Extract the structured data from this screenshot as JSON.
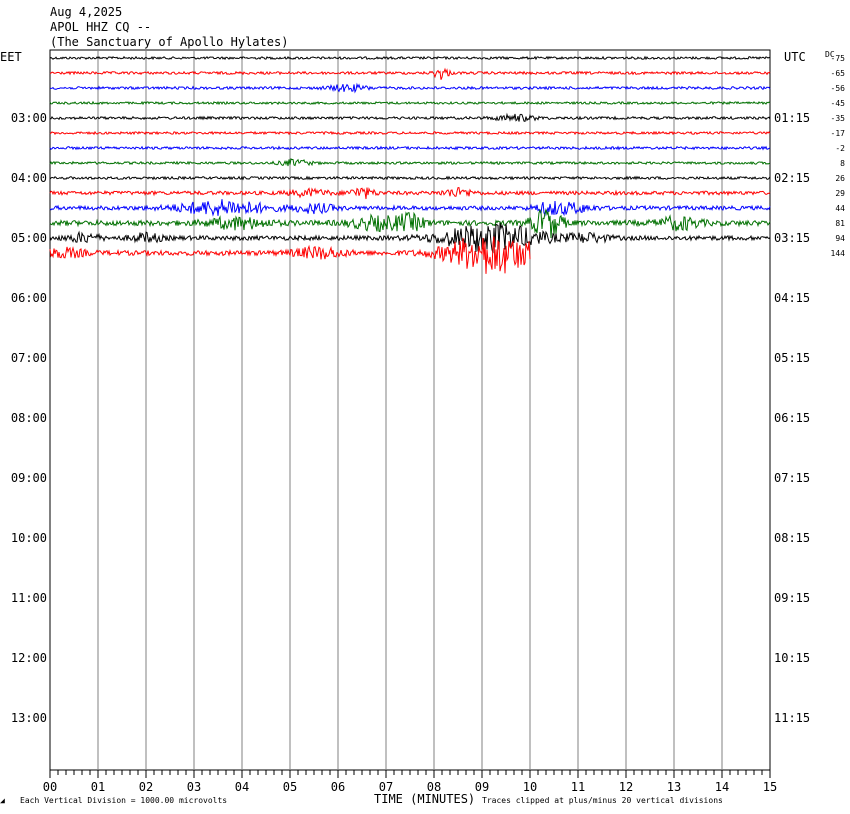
{
  "header": {
    "date": "Aug 4,2025",
    "station": "APOL HHZ CQ --",
    "site": "(The Sanctuary of Apollo Hylates)"
  },
  "labels": {
    "left_tz": "EET",
    "right_tz": "UTC",
    "dc_label": "DC",
    "x_axis_title": "TIME (MINUTES)",
    "footer_left": "Each Vertical Division = 1000.00 microvolts",
    "footer_right": "Traces clipped at plus/minus 20 vertical divisions"
  },
  "chart_data": {
    "type": "line",
    "title": "APOL HHZ CQ --",
    "subtitle": "(The Sanctuary of Apollo Hylates)",
    "xlabel": "TIME (MINUTES)",
    "ylabel": "",
    "xlim": [
      0,
      15
    ],
    "x_ticks": [
      "00",
      "01",
      "02",
      "03",
      "04",
      "05",
      "06",
      "07",
      "08",
      "09",
      "10",
      "11",
      "12",
      "13",
      "14",
      "15"
    ],
    "hour_rows": [
      {
        "left": "03:00",
        "right": "01:15"
      },
      {
        "left": "04:00",
        "right": "02:15"
      },
      {
        "left": "05:00",
        "right": "03:15"
      },
      {
        "left": "06:00",
        "right": "04:15"
      },
      {
        "left": "07:00",
        "right": "05:15"
      },
      {
        "left": "08:00",
        "right": "06:15"
      },
      {
        "left": "09:00",
        "right": "07:15"
      },
      {
        "left": "10:00",
        "right": "08:15"
      },
      {
        "left": "11:00",
        "right": "09:15"
      },
      {
        "left": "12:00",
        "right": "10:15"
      },
      {
        "left": "13:00",
        "right": "11:15"
      }
    ],
    "trace_colors": [
      "#000000",
      "#ff0000",
      "#0000ff",
      "#007000"
    ],
    "traces": [
      {
        "dc": "-75",
        "end_minute": 15,
        "noise": 1.2,
        "events": []
      },
      {
        "dc": "-65",
        "end_minute": 15,
        "noise": 1.3,
        "events": [
          {
            "t": 8.15,
            "amp": 6,
            "dur": 0.15
          }
        ]
      },
      {
        "dc": "-56",
        "end_minute": 15,
        "noise": 1.3,
        "events": [
          {
            "t": 6.2,
            "amp": 3,
            "dur": 0.4
          }
        ]
      },
      {
        "dc": "-45",
        "end_minute": 15,
        "noise": 1.1,
        "events": []
      },
      {
        "dc": "-35",
        "end_minute": 15,
        "noise": 1.3,
        "events": [
          {
            "t": 9.7,
            "amp": 3,
            "dur": 0.4
          }
        ]
      },
      {
        "dc": "-17",
        "end_minute": 15,
        "noise": 1.2,
        "events": []
      },
      {
        "dc": "-2",
        "end_minute": 15,
        "noise": 1.3,
        "events": []
      },
      {
        "dc": "8",
        "end_minute": 15,
        "noise": 1.2,
        "events": [
          {
            "t": 5.1,
            "amp": 3,
            "dur": 0.3
          }
        ]
      },
      {
        "dc": "26",
        "end_minute": 15,
        "noise": 1.3,
        "events": []
      },
      {
        "dc": "29",
        "end_minute": 15,
        "noise": 1.8,
        "events": [
          {
            "t": 5.4,
            "amp": 3,
            "dur": 0.4
          },
          {
            "t": 6.5,
            "amp": 5,
            "dur": 0.25
          },
          {
            "t": 8.5,
            "amp": 4,
            "dur": 0.3
          }
        ]
      },
      {
        "dc": "44",
        "end_minute": 15,
        "noise": 2.0,
        "events": [
          {
            "t": 3.6,
            "amp": 7,
            "dur": 0.9
          },
          {
            "t": 5.5,
            "amp": 4,
            "dur": 0.4
          },
          {
            "t": 10.4,
            "amp": 5,
            "dur": 0.3
          },
          {
            "t": 10.9,
            "amp": 4,
            "dur": 0.4
          }
        ]
      },
      {
        "dc": "81",
        "end_minute": 15,
        "noise": 2.6,
        "events": [
          {
            "t": 3.9,
            "amp": 5,
            "dur": 0.6
          },
          {
            "t": 6.8,
            "amp": 6,
            "dur": 0.5
          },
          {
            "t": 7.5,
            "amp": 7,
            "dur": 0.3
          },
          {
            "t": 10.35,
            "amp": 14,
            "dur": 0.3
          },
          {
            "t": 13.1,
            "amp": 6,
            "dur": 0.4
          }
        ]
      },
      {
        "dc": "94",
        "end_minute": 15,
        "noise": 2.2,
        "events": [
          {
            "t": 0.7,
            "amp": 4,
            "dur": 0.3
          },
          {
            "t": 2.0,
            "amp": 4,
            "dur": 0.3
          },
          {
            "t": 9.2,
            "amp": 14,
            "dur": 1.0
          },
          {
            "t": 11.2,
            "amp": 4,
            "dur": 0.4
          }
        ]
      },
      {
        "dc": "144",
        "end_minute": 10,
        "noise": 2.4,
        "events": [
          {
            "t": 0.3,
            "amp": 4,
            "dur": 0.4
          },
          {
            "t": 5.6,
            "amp": 5,
            "dur": 0.5
          },
          {
            "t": 9.2,
            "amp": 20,
            "dur": 0.9
          }
        ]
      }
    ]
  }
}
